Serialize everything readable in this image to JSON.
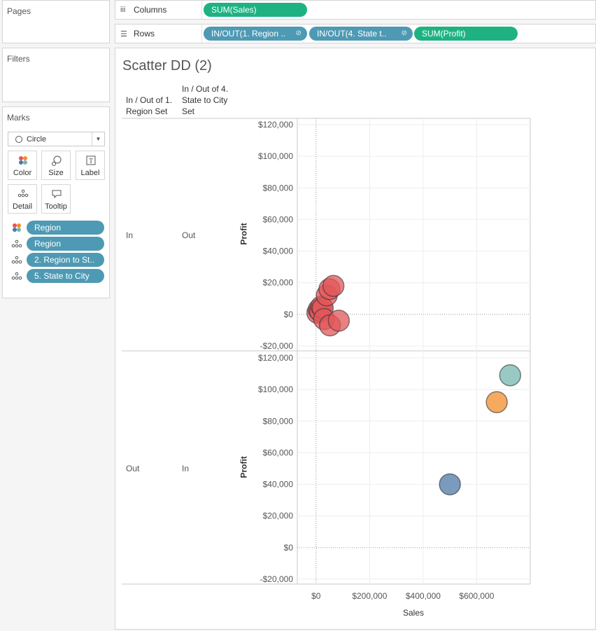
{
  "pages": {
    "title": "Pages"
  },
  "filters": {
    "title": "Filters"
  },
  "marks": {
    "title": "Marks",
    "mark_type": "Circle",
    "buttons": {
      "color": "Color",
      "size": "Size",
      "label": "Label",
      "detail": "Detail",
      "tooltip": "Tooltip"
    },
    "fields": [
      {
        "encoding": "color",
        "label": "Region"
      },
      {
        "encoding": "detail",
        "label": "Region"
      },
      {
        "encoding": "detail",
        "label": "2. Region to St.."
      },
      {
        "encoding": "detail",
        "label": "5. State to City"
      }
    ]
  },
  "columns": {
    "label": "Columns",
    "pills": [
      "SUM(Sales)"
    ]
  },
  "rows": {
    "label": "Rows",
    "pills": [
      "IN/OUT(1. Region ..",
      "IN/OUT(4. State t..",
      "SUM(Profit)"
    ]
  },
  "viz": {
    "title": "Scatter DD (2)",
    "header1": "In / Out of 1. Region Set",
    "header2": "In / Out of 4. State to City Set",
    "pane1": {
      "h1": "In",
      "h2": "Out"
    },
    "pane2": {
      "h1": "Out",
      "h2": "In"
    }
  },
  "chart_data": {
    "type": "scatter",
    "xlabel": "Sales",
    "ylabel": "Profit",
    "xlim": [
      -70000,
      800000
    ],
    "ylim": [
      -20000,
      120000
    ],
    "xticks": [
      0,
      200000,
      400000,
      600000
    ],
    "xtick_labels": [
      "$0",
      "$200,000",
      "$400,000",
      "$600,000"
    ],
    "yticks": [
      -20000,
      0,
      20000,
      40000,
      60000,
      80000,
      100000,
      120000
    ],
    "ytick_labels": [
      "-$20,000",
      "$0",
      "$20,000",
      "$40,000",
      "$60,000",
      "$80,000",
      "$100,000",
      "$120,000"
    ],
    "grid": true,
    "panes": [
      {
        "row": [
          "In",
          "Out"
        ],
        "points": [
          {
            "x": 5000,
            "y": 1000,
            "color": "#e15759"
          },
          {
            "x": 10000,
            "y": 3000,
            "color": "#e15759"
          },
          {
            "x": 15000,
            "y": 2000,
            "color": "#e15759"
          },
          {
            "x": 20000,
            "y": 5000,
            "color": "#e15759"
          },
          {
            "x": 25000,
            "y": 4000,
            "color": "#e15759"
          },
          {
            "x": 30000,
            "y": -3000,
            "color": "#e15759"
          },
          {
            "x": 40000,
            "y": 12000,
            "color": "#e15759"
          },
          {
            "x": 50000,
            "y": 16000,
            "color": "#e15759"
          },
          {
            "x": 65000,
            "y": 18000,
            "color": "#e15759"
          },
          {
            "x": 52000,
            "y": -7000,
            "color": "#e15759"
          },
          {
            "x": 85000,
            "y": -4000,
            "color": "#e15759"
          }
        ]
      },
      {
        "row": [
          "Out",
          "In"
        ],
        "points": [
          {
            "x": 725000,
            "y": 109000,
            "color": "#76b7b2"
          },
          {
            "x": 675000,
            "y": 92000,
            "color": "#f28e2b"
          },
          {
            "x": 500000,
            "y": 40000,
            "color": "#4e79a7"
          }
        ]
      }
    ]
  },
  "colors": {
    "accent_green": "#1eb282",
    "accent_blue": "#4e9ab4"
  }
}
